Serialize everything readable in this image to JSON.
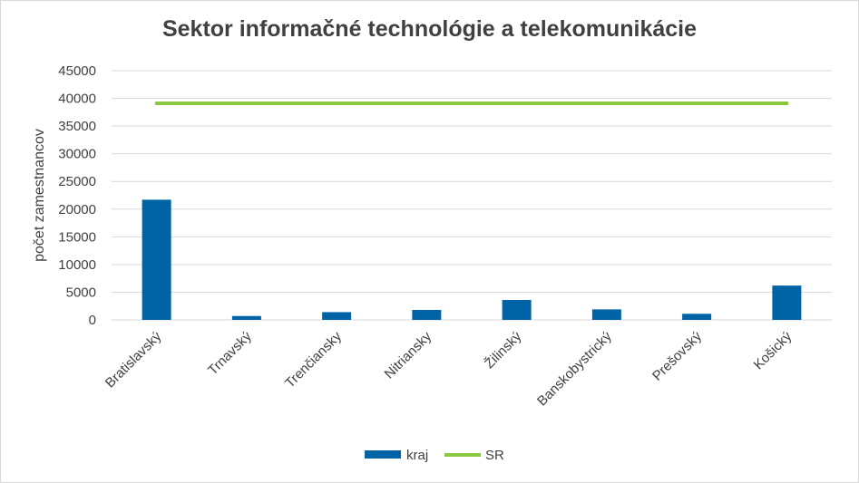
{
  "chart_data": {
    "type": "bar",
    "title": "Sektor informačné technológie a telekomunikácie",
    "xlabel": "",
    "ylabel": "počet zamestnancov",
    "ylim": [
      0,
      45000
    ],
    "yticks": [
      0,
      5000,
      10000,
      15000,
      20000,
      25000,
      30000,
      35000,
      40000,
      45000
    ],
    "grid": true,
    "legend_position": "bottom",
    "categories": [
      "Bratislavský",
      "Trnavský",
      "Trenčiansky",
      "Nitriansky",
      "Žilinský",
      "Banskobystrický",
      "Prešovský",
      "Košický"
    ],
    "series": [
      {
        "name": "kraj",
        "type": "bar",
        "color": "#0063a6",
        "values": [
          21700,
          700,
          1400,
          1800,
          3600,
          1900,
          1100,
          6200
        ]
      },
      {
        "name": "SR",
        "type": "line",
        "color": "#8dc63f",
        "values": [
          39100,
          39100,
          39100,
          39100,
          39100,
          39100,
          39100,
          39100
        ]
      }
    ]
  }
}
